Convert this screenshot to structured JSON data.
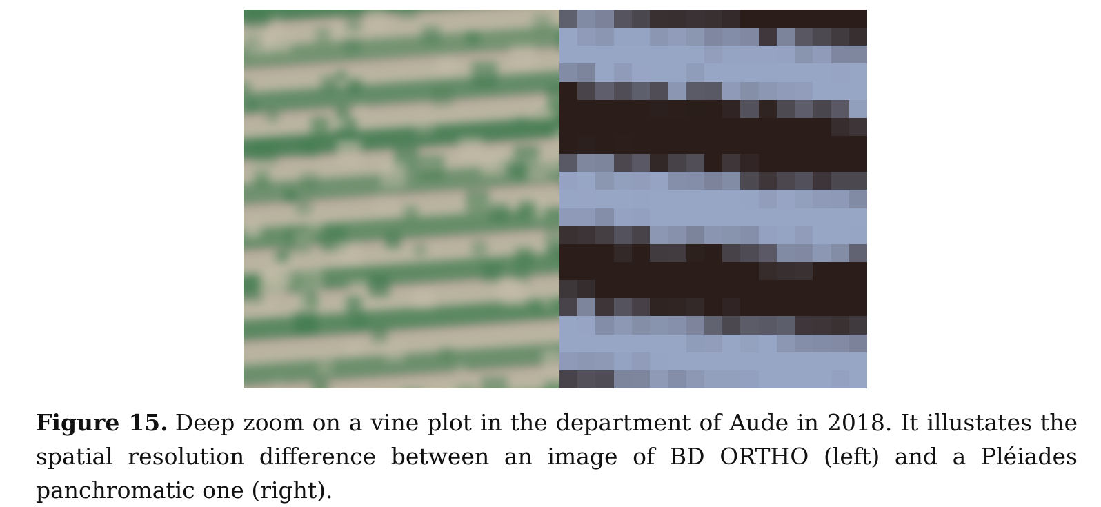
{
  "figure": {
    "label": "Figure 15.",
    "caption": "Deep zoom on a vine plot in the department of Aude in 2018. It illustates the spatial resolution difference between an image of BD ORTHO (left) and a Pléiades panchromatic one (right).",
    "colors": {
      "left_light": "#c3bca8",
      "left_green": "#3f7a4e",
      "left_pink": "#b89a9a",
      "right_light": "#98a6c6",
      "right_mid": "#6f7487",
      "right_dark": "#2a1d1a"
    }
  }
}
